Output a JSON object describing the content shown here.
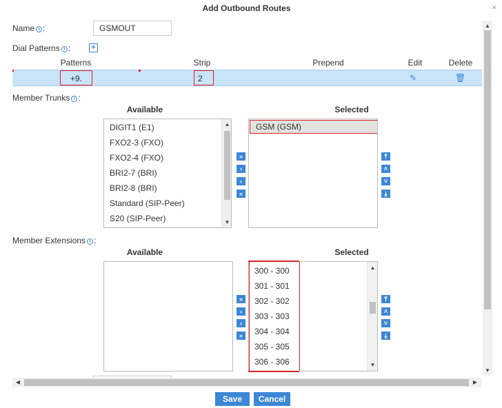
{
  "dialog": {
    "title": "Add Outbound Routes",
    "close_glyph": "×"
  },
  "name": {
    "label": "Name",
    "value": "GSMOUT"
  },
  "dial_patterns": {
    "label": "Dial Patterns",
    "add_glyph": "+",
    "headers": {
      "patterns": "Patterns",
      "strip": "Strip",
      "prepend": "Prepend",
      "edit": "Edit",
      "delete": "Delete"
    },
    "rows": [
      {
        "pattern": "+9.",
        "strip": "2",
        "prepend": ""
      }
    ],
    "highlight_color": "#c9e3f8"
  },
  "member_trunks": {
    "label": "Member Trunks",
    "available_heading": "Available",
    "selected_heading": "Selected",
    "available": [
      "DIGIT1 (E1)",
      "FXO2-3 (FXO)",
      "FXO2-4 (FXO)",
      "BRI2-7 (BRI)",
      "BRI2-8 (BRI)",
      "Standard (SIP-Peer)",
      "S20 (SIP-Peer)"
    ],
    "selected": [
      "GSM (GSM)"
    ]
  },
  "member_extensions": {
    "label": "Member Extensions",
    "available_heading": "Available",
    "selected_heading": "Selected",
    "available": [],
    "selected": [
      "300 - 300",
      "301 - 301",
      "302 - 302",
      "303 - 303",
      "304 - 304",
      "305 - 305",
      "306 - 306"
    ]
  },
  "move_buttons": {
    "add_all": "»",
    "add": "›",
    "remove": "‹",
    "remove_all": "«",
    "top": "⤒",
    "up": "˄",
    "down": "˅",
    "bottom": "⤓"
  },
  "scroll_arrows": {
    "up": "▲",
    "down": "▼",
    "left": "◀",
    "right": "▶"
  },
  "info_glyph": "i",
  "label_suffix": ":",
  "icons": {
    "edit": "✎",
    "delete": "🗑"
  },
  "actions": {
    "save": "Save",
    "cancel": "Cancel"
  },
  "colors": {
    "accent": "#3d87d6",
    "highlight_border": "#e02020"
  }
}
